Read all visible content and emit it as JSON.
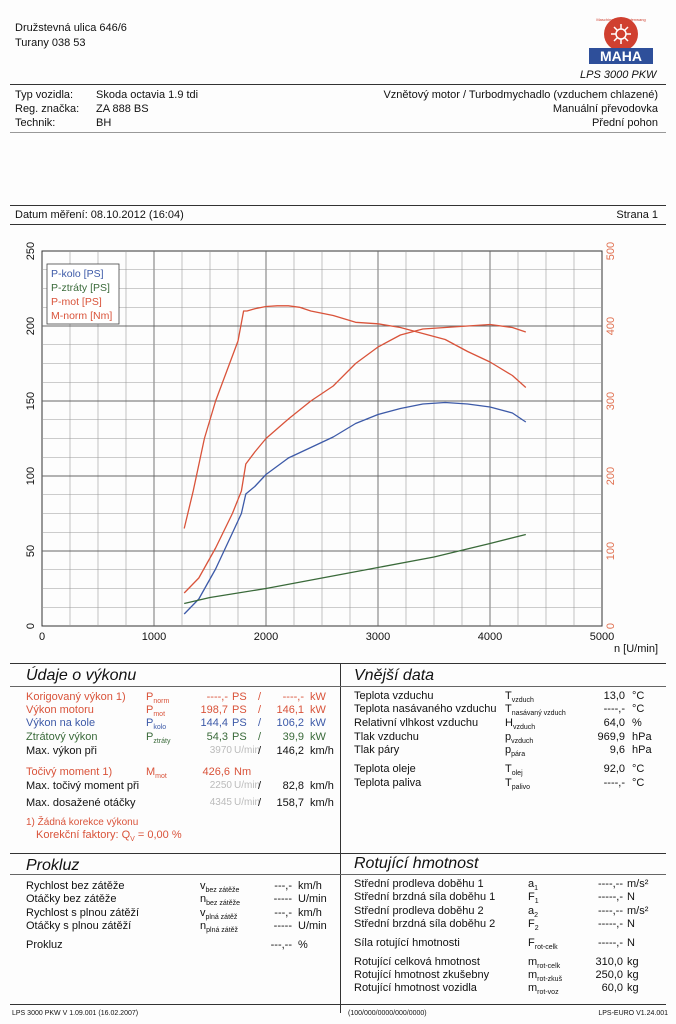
{
  "address": {
    "street": "Družstevná ulica 646/6",
    "city": "Turany 038 53"
  },
  "brand": {
    "logo_text": "MAHA",
    "badge_text": "Maschinenbau Haldenwang",
    "model": "LPS 3000 PKW"
  },
  "vehicle": {
    "type_label": "Typ vozidla:",
    "type_value": "Skoda octavia 1.9 tdi",
    "reg_label": "Reg. značka:",
    "reg_value": "ZA 888 BS",
    "tech_label": "Technik:",
    "tech_value": "BH",
    "engine": "Vznětový motor / Turbodmychadlo (vzduchem chlazené)",
    "gearbox": "Manuální převodovka",
    "drive": "Přední pohon"
  },
  "measure": {
    "date": "Datum měření: 08.10.2012 (16:04)",
    "page": "Strana 1"
  },
  "chart_data": {
    "type": "line",
    "x_unit": "n [U/min]",
    "xlim": [
      0,
      5000
    ],
    "x_ticks": [
      "0",
      "1000",
      "2000",
      "3000",
      "4000",
      "5000"
    ],
    "ylim_left": [
      0,
      250
    ],
    "y_ticks_left": [
      "0",
      "50",
      "100",
      "150",
      "200",
      "250"
    ],
    "ylim_right": [
      0,
      500
    ],
    "y_ticks_right": [
      "0",
      "100",
      "200",
      "300",
      "400",
      "500"
    ],
    "legend": [
      "P-kolo [PS]",
      "P-ztráty [PS]",
      "P-mot [PS]",
      "M-norm [Nm]"
    ],
    "legend_position": "top-left",
    "grid": true,
    "series": [
      {
        "name": "P-kolo [PS]",
        "axis": "left",
        "color": "#3d5aa8",
        "x": [
          1270,
          1400,
          1550,
          1700,
          1780,
          1820,
          1900,
          2000,
          2200,
          2400,
          2600,
          2800,
          3000,
          3200,
          3400,
          3600,
          3800,
          4000,
          4200,
          4320
        ],
        "y": [
          8,
          18,
          38,
          62,
          75,
          88,
          93,
          101,
          112,
          119,
          126,
          135,
          141,
          145,
          148,
          149,
          148,
          146,
          142,
          136
        ]
      },
      {
        "name": "P-ztráty [PS]",
        "axis": "left",
        "color": "#3a6a3a",
        "x": [
          1270,
          1500,
          2000,
          2500,
          3000,
          3500,
          4000,
          4320
        ],
        "y": [
          15,
          19,
          25,
          32,
          39,
          46,
          55,
          61
        ]
      },
      {
        "name": "P-mot [PS]",
        "axis": "left",
        "color": "#d9533a",
        "x": [
          1270,
          1400,
          1550,
          1700,
          1780,
          1820,
          1900,
          2000,
          2200,
          2400,
          2600,
          2800,
          3000,
          3200,
          3400,
          3600,
          3800,
          4000,
          4200,
          4320
        ],
        "y": [
          22,
          32,
          52,
          75,
          90,
          108,
          116,
          125,
          138,
          150,
          160,
          175,
          186,
          194,
          198,
          199,
          200,
          201,
          199,
          196
        ]
      },
      {
        "name": "M-norm [Nm]",
        "axis": "right",
        "color": "#d9533a",
        "x": [
          1270,
          1350,
          1450,
          1550,
          1650,
          1750,
          1800,
          1830,
          1900,
          2000,
          2100,
          2200,
          2300,
          2400,
          2600,
          2800,
          3000,
          3200,
          3400,
          3600,
          3800,
          4000,
          4200,
          4320
        ],
        "y": [
          130,
          180,
          250,
          300,
          340,
          380,
          420,
          420,
          423,
          426,
          427,
          427,
          425,
          420,
          414,
          405,
          403,
          398,
          390,
          382,
          366,
          352,
          334,
          318
        ]
      }
    ]
  },
  "performance": {
    "title": "Údaje o výkonu",
    "rows": [
      {
        "label": "Korigovaný výkon 1)",
        "sym": "P",
        "sub": "norm",
        "val1": "----,-",
        "u1": "PS",
        "val2": "----,-",
        "u2": "kW"
      },
      {
        "label": "Výkon motoru",
        "sym": "P",
        "sub": "mot",
        "val1": "198,7",
        "u1": "PS",
        "val2": "146,1",
        "u2": "kW"
      },
      {
        "label": "Výkon na kole",
        "sym": "P",
        "sub": "kolo",
        "val1": "144,4",
        "u1": "PS",
        "val2": "106,2",
        "u2": "kW"
      },
      {
        "label": "Ztrátový výkon",
        "sym": "P",
        "sub": "ztráty",
        "val1": "54,3",
        "u1": "PS",
        "val2": "39,9",
        "u2": "kW"
      }
    ],
    "max_power_label": "Max. výkon při",
    "max_power_rpm": "3970",
    "max_power_rpm_unit": "U/min",
    "max_power_speed": "146,2",
    "speed_unit": "km/h",
    "torque_label": "Točivý moment 1)",
    "torque_sym": "M",
    "torque_sub": "mot",
    "torque_value": "426,6",
    "torque_unit": "Nm",
    "max_torque_label": "Max. točivý moment při",
    "max_torque_rpm": "2250",
    "max_torque_speed": "82,8",
    "max_rpm_label": "Max. dosažené otáčky",
    "max_rpm_value": "4345",
    "max_rpm_speed": "158,7",
    "note1": "1) Žádná korekce výkonu",
    "note2": "Korekční faktory: Q",
    "note2_sub": "V",
    "note2_value": " =  0,00 %"
  },
  "external": {
    "title": "Vnější data",
    "rows": [
      {
        "label": "Teplota vzduchu",
        "sym": "T",
        "sub": "vzduch",
        "value": "13,0",
        "unit": "°C"
      },
      {
        "label": "Teplota nasávaného vzduchu",
        "sym": "T",
        "sub": "nasávaný vzduch",
        "value": "----,-",
        "unit": "°C"
      },
      {
        "label": "Relativní vlhkost vzduchu",
        "sym": "H",
        "sub": "vzduch",
        "value": "64,0",
        "unit": "%"
      },
      {
        "label": "Tlak vzduchu",
        "sym": "p",
        "sub": "vzduch",
        "value": "969,9",
        "unit": "hPa"
      },
      {
        "label": "Tlak páry",
        "sym": "p",
        "sub": "pára",
        "value": "9,6",
        "unit": "hPa"
      },
      {
        "label": "Teplota oleje",
        "sym": "T",
        "sub": "olej",
        "value": "92,0",
        "unit": "°C"
      },
      {
        "label": "Teplota paliva",
        "sym": "T",
        "sub": "palivo",
        "value": "----,-",
        "unit": "°C"
      }
    ]
  },
  "slip": {
    "title": "Prokluz",
    "rows": [
      {
        "label": "Rychlost bez zátěže",
        "sym": "v",
        "sub": "bez zátěže",
        "value": "---,-",
        "unit": "km/h"
      },
      {
        "label": "Otáčky bez zátěže",
        "sym": "n",
        "sub": "bez zátěže",
        "value": "-----",
        "unit": "U/min"
      },
      {
        "label": "Rychlost s plnou zátěží",
        "sym": "v",
        "sub": "plná zátěž",
        "value": "---,-",
        "unit": "km/h"
      },
      {
        "label": "Otáčky s plnou zátěží",
        "sym": "n",
        "sub": "plná zátěž",
        "value": "-----",
        "unit": "U/min"
      },
      {
        "label": "Prokluz",
        "sym": "",
        "sub": "",
        "value": "---,--",
        "unit": "%"
      }
    ]
  },
  "rotating": {
    "title": "Rotující hmotnost",
    "rows": [
      {
        "label": "Střední prodleva doběhu 1",
        "sym": "a",
        "sub": "1",
        "value": "----,--",
        "unit": "m/s²"
      },
      {
        "label": "Střední brzdná síla doběhu 1",
        "sym": "F",
        "sub": "1",
        "value": "-----,-",
        "unit": "N"
      },
      {
        "label": "Střední prodleva doběhu 2",
        "sym": "a",
        "sub": "2",
        "value": "----,--",
        "unit": "m/s²"
      },
      {
        "label": "Střední brzdná síla doběhu 2",
        "sym": "F",
        "sub": "2",
        "value": "-----,-",
        "unit": "N"
      },
      {
        "label": "Síla rotující hmotnosti",
        "sym": "F",
        "sub": "rot-celk",
        "value": "-----,-",
        "unit": "N"
      },
      {
        "label": "Rotující celková hmotnost",
        "sym": "m",
        "sub": "rot-celk",
        "value": "310,0",
        "unit": "kg"
      },
      {
        "label": "Rotující hmotnost zkušebny",
        "sym": "m",
        "sub": "rot-zkuš",
        "value": "250,0",
        "unit": "kg"
      },
      {
        "label": "Rotující hmotnost vozidla",
        "sym": "m",
        "sub": "rot-voz",
        "value": "60,0",
        "unit": "kg"
      }
    ]
  },
  "footer": {
    "left": "LPS 3000 PKW V 1.09.001 (16.02.2007)",
    "center": "(100/000/0000/000/0000)",
    "right": "LPS-EURO V1.24.001"
  }
}
